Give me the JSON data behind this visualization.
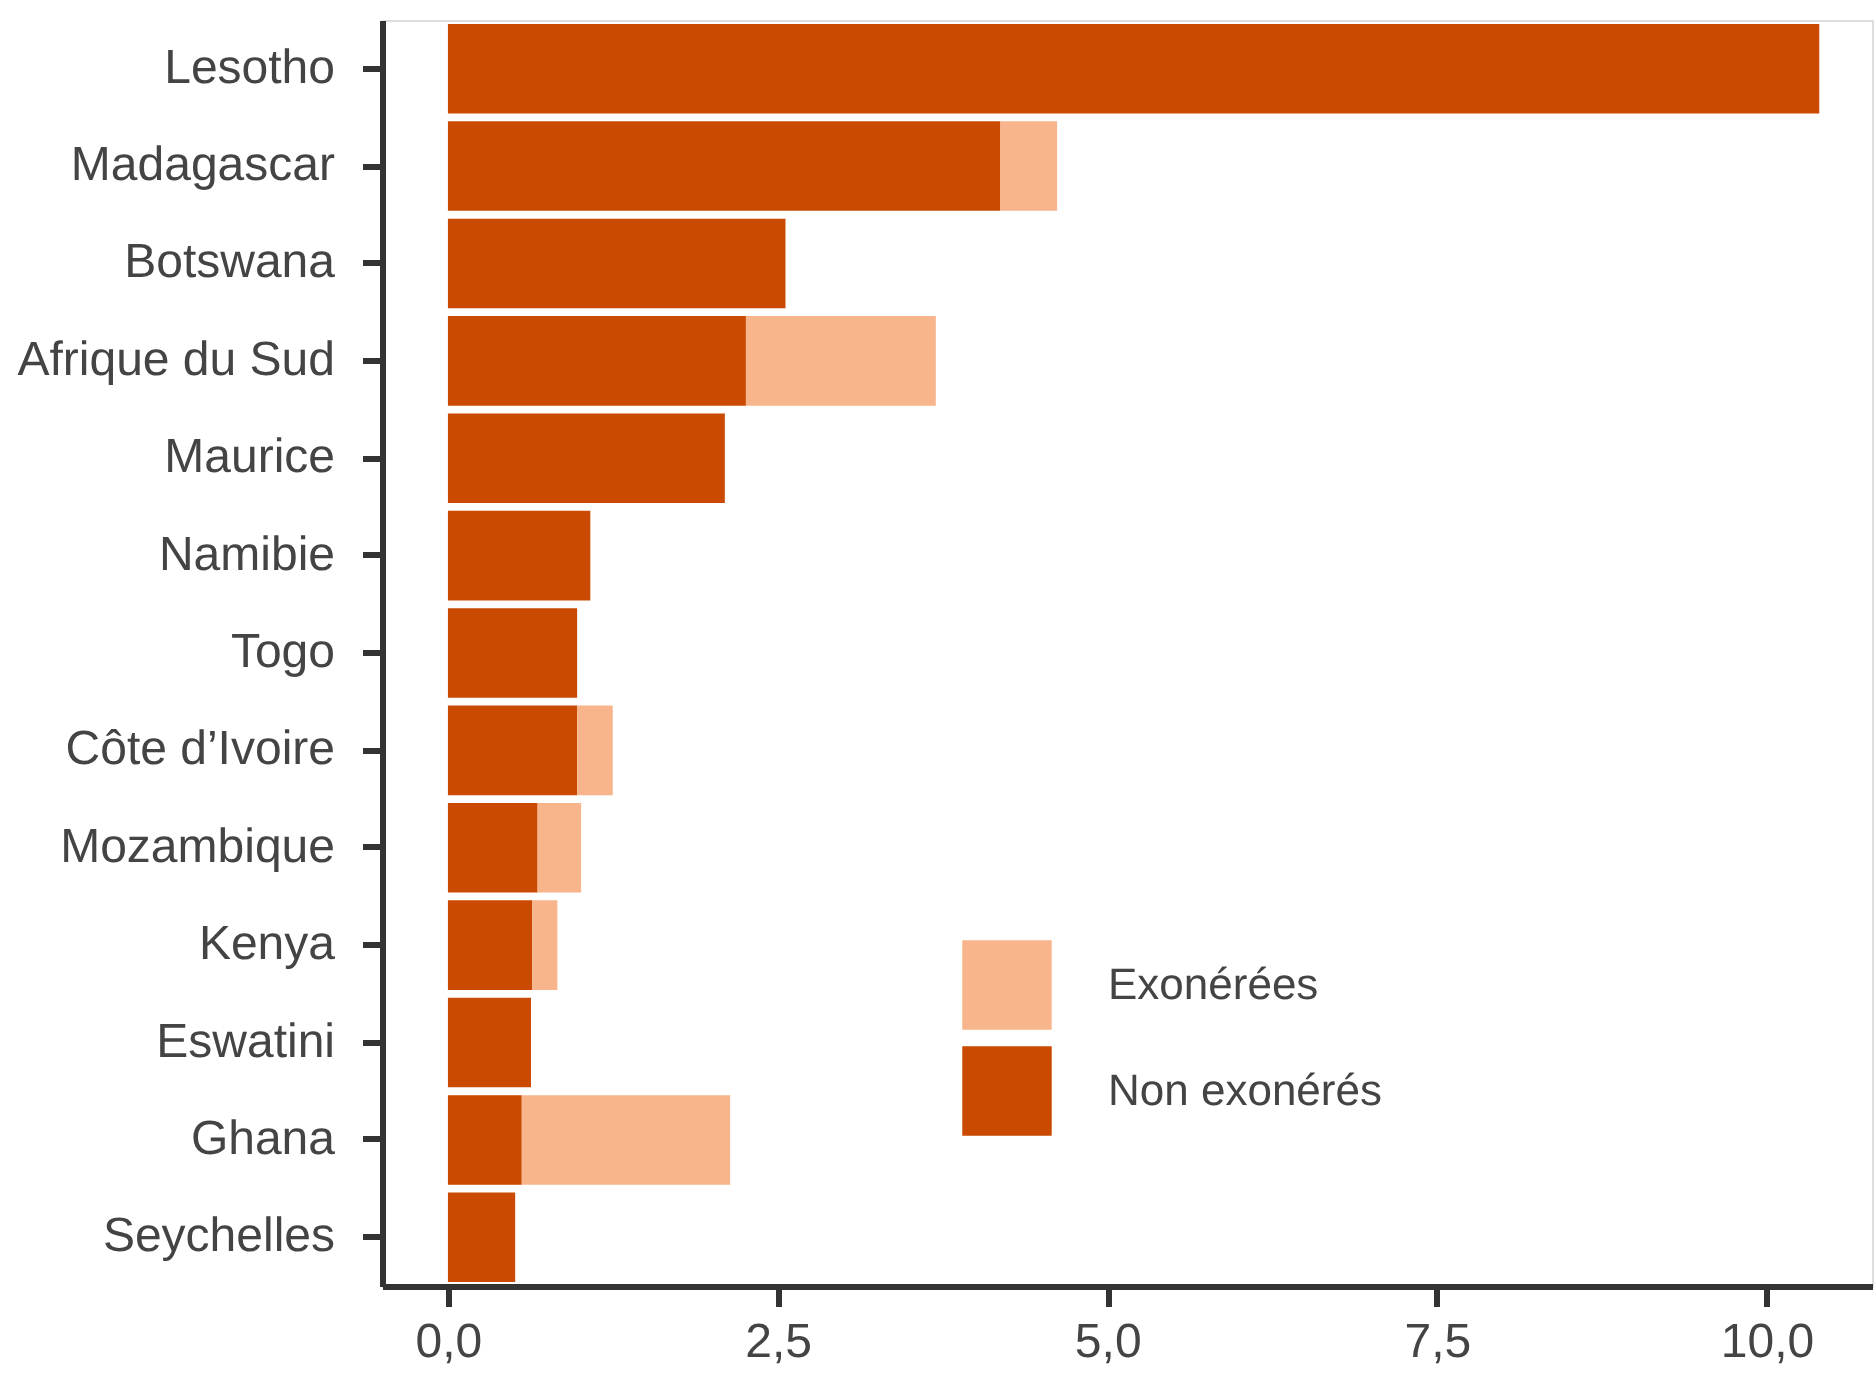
{
  "chart_data": {
    "type": "bar",
    "orientation": "horizontal",
    "stacked": true,
    "categories": [
      "Lesotho",
      "Madagascar",
      "Botswana",
      "Afrique du Sud",
      "Maurice",
      "Namibie",
      "Togo",
      "Côte d’Ivoire",
      "Mozambique",
      "Kenya",
      "Eswatini",
      "Ghana",
      "Seychelles"
    ],
    "series": [
      {
        "name": "Non exonérés",
        "color": "#c94a00",
        "values": [
          10.4,
          4.19,
          2.56,
          2.26,
          2.1,
          1.08,
          0.98,
          0.98,
          0.68,
          0.64,
          0.63,
          0.56,
          0.51
        ]
      },
      {
        "name": "Exonérées",
        "color": "#f8b58b",
        "values": [
          null,
          0.43,
          null,
          1.44,
          null,
          null,
          null,
          0.27,
          0.33,
          0.19,
          null,
          1.58,
          null
        ]
      }
    ],
    "xlim": [
      -0.5,
      10.8
    ],
    "xticks": [
      {
        "value": 0,
        "label": "0,0"
      },
      {
        "value": 2.5,
        "label": "2,5"
      },
      {
        "value": 5,
        "label": "5,0"
      },
      {
        "value": 7.5,
        "label": "7,5"
      },
      {
        "value": 10,
        "label": "10,0"
      }
    ],
    "grid": false,
    "legend": "right"
  }
}
